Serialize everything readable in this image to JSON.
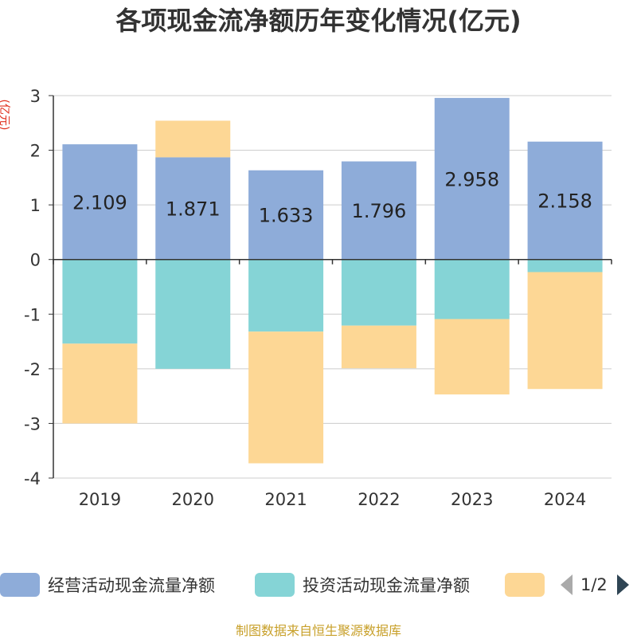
{
  "chart_data": {
    "type": "bar",
    "stacked": true,
    "title": "各项现金流净额历年变化情况(亿元)",
    "ylabel": "(亿元)",
    "xlabel": "",
    "ylim": [
      -4,
      3
    ],
    "yticks": [
      3,
      2,
      1,
      0,
      -1,
      -2,
      -3,
      -4
    ],
    "grid": true,
    "categories": [
      "2019",
      "2020",
      "2021",
      "2022",
      "2023",
      "2024"
    ],
    "series": [
      {
        "name": "经营活动现金流量净额",
        "color": "#8eacd9",
        "values": [
          2.109,
          1.871,
          1.633,
          1.796,
          2.958,
          2.158
        ],
        "labels": [
          "2.109",
          "1.871",
          "1.633",
          "1.796",
          "2.958",
          "2.158"
        ]
      },
      {
        "name": "投资活动现金流量净额",
        "color": "#85d4d6",
        "values": [
          -1.54,
          -2.0,
          -1.32,
          -1.21,
          -1.09,
          -0.23
        ],
        "labels": []
      },
      {
        "name": "",
        "color": "#fdd795",
        "values": [
          -1.46,
          0.67,
          -2.41,
          -0.78,
          -1.38,
          -2.14
        ],
        "labels": []
      }
    ],
    "legend_position": "bottom"
  },
  "legend": {
    "items": [
      {
        "label": "经营活动现金流量净额",
        "color": "#8eacd9"
      },
      {
        "label": "投资活动现金流量净额",
        "color": "#85d4d6"
      },
      {
        "label": "",
        "color": "#fdd795"
      }
    ],
    "pager_text": "1/2"
  },
  "source": "制图数据来自恒生聚源数据库"
}
